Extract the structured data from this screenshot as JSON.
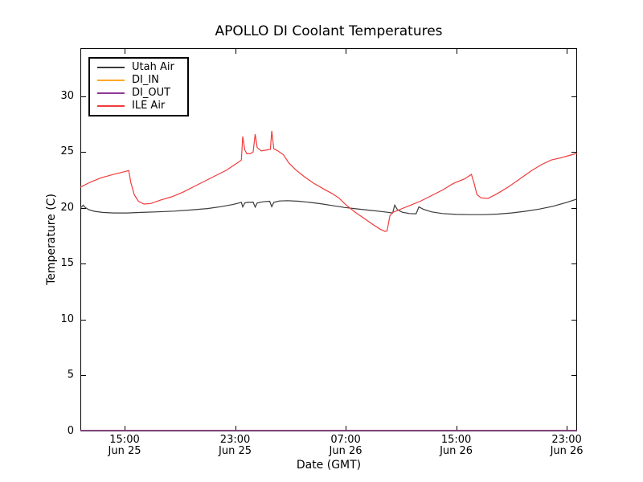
{
  "chart_data": {
    "type": "line",
    "title": "APOLLO DI Coolant Temperatures",
    "xlabel": "Date (GMT)",
    "ylabel": "Temperature (C)",
    "x_unit": "hours since Jun 25 00:00 GMT",
    "xlim": [
      11.8,
      47.75
    ],
    "ylim": [
      0,
      34.3
    ],
    "grid": false,
    "legend_position": "upper left",
    "axis_color": "#000000",
    "xticks": [
      {
        "t": 15,
        "time": "15:00",
        "date": "Jun 25"
      },
      {
        "t": 23,
        "time": "23:00",
        "date": "Jun 25"
      },
      {
        "t": 31,
        "time": "07:00",
        "date": "Jun 26"
      },
      {
        "t": 39,
        "time": "15:00",
        "date": "Jun 26"
      },
      {
        "t": 47,
        "time": "23:00",
        "date": "Jun 26"
      }
    ],
    "yticks": [
      0,
      5,
      10,
      15,
      20,
      25,
      30
    ],
    "series": [
      {
        "name": "Utah Air",
        "color": "#3a3a3a",
        "points": [
          [
            11.8,
            20.0
          ],
          [
            11.9,
            20.1
          ],
          [
            12.0,
            20.25
          ],
          [
            12.15,
            20.05
          ],
          [
            12.4,
            19.85
          ],
          [
            12.8,
            19.7
          ],
          [
            13.4,
            19.6
          ],
          [
            14.2,
            19.55
          ],
          [
            15.2,
            19.55
          ],
          [
            16.2,
            19.6
          ],
          [
            17.4,
            19.65
          ],
          [
            18.6,
            19.72
          ],
          [
            19.8,
            19.82
          ],
          [
            21.0,
            19.95
          ],
          [
            22.0,
            20.12
          ],
          [
            22.8,
            20.3
          ],
          [
            23.3,
            20.45
          ],
          [
            23.45,
            20.5
          ],
          [
            23.55,
            20.1
          ],
          [
            23.7,
            20.45
          ],
          [
            23.9,
            20.5
          ],
          [
            24.3,
            20.52
          ],
          [
            24.45,
            20.08
          ],
          [
            24.6,
            20.45
          ],
          [
            25.0,
            20.55
          ],
          [
            25.5,
            20.6
          ],
          [
            25.65,
            20.12
          ],
          [
            25.8,
            20.5
          ],
          [
            26.2,
            20.62
          ],
          [
            26.8,
            20.65
          ],
          [
            27.6,
            20.6
          ],
          [
            28.4,
            20.5
          ],
          [
            29.2,
            20.38
          ],
          [
            30.0,
            20.22
          ],
          [
            30.9,
            20.05
          ],
          [
            31.8,
            19.92
          ],
          [
            32.8,
            19.78
          ],
          [
            33.6,
            19.68
          ],
          [
            34.0,
            19.62
          ],
          [
            34.4,
            19.55
          ],
          [
            34.55,
            20.25
          ],
          [
            34.75,
            19.85
          ],
          [
            35.1,
            19.62
          ],
          [
            35.6,
            19.5
          ],
          [
            36.1,
            19.48
          ],
          [
            36.3,
            20.1
          ],
          [
            36.6,
            19.9
          ],
          [
            37.2,
            19.65
          ],
          [
            38.0,
            19.5
          ],
          [
            39.0,
            19.42
          ],
          [
            40.0,
            19.4
          ],
          [
            41.0,
            19.4
          ],
          [
            42.0,
            19.45
          ],
          [
            43.0,
            19.55
          ],
          [
            44.0,
            19.7
          ],
          [
            45.0,
            19.9
          ],
          [
            46.0,
            20.15
          ],
          [
            47.0,
            20.5
          ],
          [
            47.75,
            20.8
          ]
        ]
      },
      {
        "name": "DI_IN",
        "color": "#ffa726",
        "points": [
          [
            11.8,
            0
          ],
          [
            47.75,
            0
          ]
        ]
      },
      {
        "name": "DI_OUT",
        "color": "#8d3a96",
        "points": [
          [
            11.8,
            0
          ],
          [
            47.75,
            0
          ]
        ]
      },
      {
        "name": "ILE Air",
        "color": "#f23b3b",
        "points": [
          [
            11.8,
            21.85
          ],
          [
            12.5,
            22.3
          ],
          [
            13.3,
            22.7
          ],
          [
            14.2,
            23.0
          ],
          [
            15.0,
            23.25
          ],
          [
            15.3,
            23.35
          ],
          [
            15.45,
            22.3
          ],
          [
            15.7,
            21.2
          ],
          [
            16.0,
            20.6
          ],
          [
            16.4,
            20.35
          ],
          [
            16.9,
            20.4
          ],
          [
            17.6,
            20.7
          ],
          [
            18.4,
            21.0
          ],
          [
            19.2,
            21.4
          ],
          [
            20.0,
            21.9
          ],
          [
            20.8,
            22.4
          ],
          [
            21.6,
            22.9
          ],
          [
            22.4,
            23.4
          ],
          [
            23.0,
            23.9
          ],
          [
            23.3,
            24.15
          ],
          [
            23.45,
            24.3
          ],
          [
            23.55,
            26.4
          ],
          [
            23.7,
            25.2
          ],
          [
            23.85,
            24.85
          ],
          [
            24.1,
            24.85
          ],
          [
            24.3,
            25.0
          ],
          [
            24.45,
            26.6
          ],
          [
            24.6,
            25.4
          ],
          [
            24.9,
            25.1
          ],
          [
            25.3,
            25.2
          ],
          [
            25.55,
            25.25
          ],
          [
            25.65,
            26.9
          ],
          [
            25.8,
            25.3
          ],
          [
            26.1,
            25.1
          ],
          [
            26.5,
            24.75
          ],
          [
            26.9,
            24.0
          ],
          [
            27.4,
            23.4
          ],
          [
            28.0,
            22.8
          ],
          [
            28.7,
            22.2
          ],
          [
            29.4,
            21.7
          ],
          [
            30.0,
            21.3
          ],
          [
            30.5,
            20.9
          ],
          [
            31.0,
            20.3
          ],
          [
            31.7,
            19.6
          ],
          [
            32.3,
            19.1
          ],
          [
            33.0,
            18.5
          ],
          [
            33.5,
            18.1
          ],
          [
            33.85,
            17.9
          ],
          [
            34.0,
            17.95
          ],
          [
            34.1,
            18.6
          ],
          [
            34.2,
            19.3
          ],
          [
            34.4,
            19.6
          ],
          [
            34.9,
            19.85
          ],
          [
            35.6,
            20.2
          ],
          [
            36.4,
            20.6
          ],
          [
            37.2,
            21.1
          ],
          [
            38.0,
            21.6
          ],
          [
            38.8,
            22.2
          ],
          [
            39.6,
            22.6
          ],
          [
            40.1,
            23.0
          ],
          [
            40.3,
            22.2
          ],
          [
            40.5,
            21.2
          ],
          [
            40.8,
            20.9
          ],
          [
            41.3,
            20.85
          ],
          [
            42.0,
            21.3
          ],
          [
            42.8,
            21.9
          ],
          [
            43.6,
            22.6
          ],
          [
            44.4,
            23.3
          ],
          [
            45.2,
            23.9
          ],
          [
            45.9,
            24.3
          ],
          [
            46.6,
            24.5
          ],
          [
            47.2,
            24.7
          ],
          [
            47.75,
            24.9
          ]
        ]
      }
    ]
  }
}
